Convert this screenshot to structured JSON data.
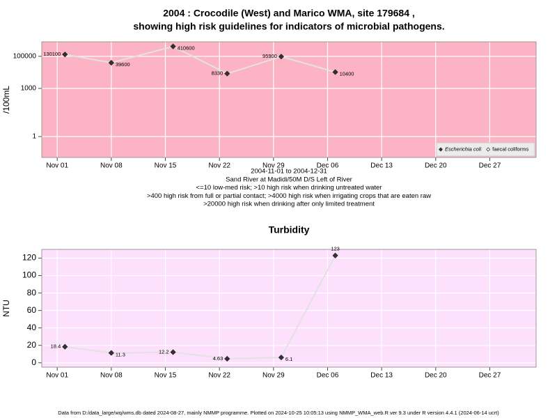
{
  "chart_data": [
    {
      "type": "line",
      "title": [
        "2004 : Crocodile (West) and Marico WMA, site 179684 ,",
        "showing high risk guidelines for indicators of microbial pathogens."
      ],
      "notes": [
        "2004-11-01 to 2004-12-31",
        "Sand River at Madidi/50M D/S Left of River",
        "<=10 low-med risk; >10 high risk when drinking untreated water",
        ">400 high risk from full or partial contact; >4000 high risk when irrigating crops that are eaten raw",
        ">20000 high risk when drinking after only limited treatment"
      ],
      "y_label": "/100mL",
      "log_scale": true,
      "x": [
        "2004-11-02",
        "2004-11-08",
        "2004-11-16",
        "2004-11-23",
        "2004-11-30",
        "2004-12-07"
      ],
      "series": [
        {
          "name": "Escherichia coli",
          "color": "#333333",
          "line_color": "#e2e2e2",
          "values": [
            130100,
            39600,
            410600,
            8330,
            95900,
            10400
          ]
        },
        {
          "name": "faecal coliforms",
          "color": "#ffffff",
          "line_color": "#e2e2e2",
          "values": [
            null,
            null,
            null,
            null,
            null,
            null
          ]
        }
      ],
      "bands": [
        {
          "from": 0.05,
          "color": "#a4b4cc"
        },
        {
          "from": 10,
          "color": "#c4ccc4"
        },
        {
          "from": 400,
          "color": "#fcf6c8"
        },
        {
          "from": 4000,
          "color": "#fce0fc"
        },
        {
          "from": 20000,
          "color": "#fcb4c4"
        }
      ],
      "xlim": [
        "2004-10-30",
        "2005-01-02"
      ],
      "xticks": [
        {
          "value": "2004-11-01",
          "label": "Nov 01"
        },
        {
          "value": "2004-11-08",
          "label": "Nov 08"
        },
        {
          "value": "2004-11-15",
          "label": "Nov 15"
        },
        {
          "value": "2004-11-22",
          "label": "Nov 22"
        },
        {
          "value": "2004-11-29",
          "label": "Nov 29"
        },
        {
          "value": "2004-12-06",
          "label": "Dec 06"
        },
        {
          "value": "2004-12-13",
          "label": "Dec 13"
        },
        {
          "value": "2004-12-20",
          "label": "Dec 20"
        },
        {
          "value": "2004-12-27",
          "label": "Dec 27"
        }
      ],
      "ylim": [
        0.05,
        800000
      ],
      "yticks": [
        1,
        1000,
        100000
      ],
      "grid": true,
      "legend": "bottom-right"
    },
    {
      "type": "line",
      "title": [
        "Turbidity"
      ],
      "y_label": "NTU",
      "log_scale": false,
      "x": [
        "2004-11-02",
        "2004-11-08",
        "2004-11-16",
        "2004-11-23",
        "2004-11-30",
        "2004-12-07"
      ],
      "series": [
        {
          "name": "Turbidity",
          "color": "#333333",
          "line_color": "#e2e2e2",
          "values": [
            18.4,
            11.3,
            12.2,
            4.63,
            6.1,
            123
          ]
        }
      ],
      "bands": [
        {
          "from": -5,
          "color": "#a4b4cc"
        },
        {
          "from": 10,
          "color": "#fce0fc"
        }
      ],
      "xlim": [
        "2004-10-30",
        "2005-01-02"
      ],
      "xticks": [
        {
          "value": "2004-11-01",
          "label": "Nov 01"
        },
        {
          "value": "2004-11-08",
          "label": "Nov 08"
        },
        {
          "value": "2004-11-15",
          "label": "Nov 15"
        },
        {
          "value": "2004-11-22",
          "label": "Nov 22"
        },
        {
          "value": "2004-11-29",
          "label": "Nov 29"
        },
        {
          "value": "2004-12-06",
          "label": "Dec 06"
        },
        {
          "value": "2004-12-13",
          "label": "Dec 13"
        },
        {
          "value": "2004-12-20",
          "label": "Dec 20"
        },
        {
          "value": "2004-12-27",
          "label": "Dec 27"
        }
      ],
      "ylim": [
        -5,
        130
      ],
      "yticks": [
        0,
        20,
        40,
        60,
        80,
        100,
        120
      ],
      "grid": true
    }
  ],
  "footer": "Data from D:/data_large/wq/wms.db dated 2024-08-27, mainly NMMP programme. Plotted on 2024-10-25 10:05:13 using NMMP_WMA_web.R ver 9.3 under R version 4.4.1 (2024-06-14 ucrt)"
}
